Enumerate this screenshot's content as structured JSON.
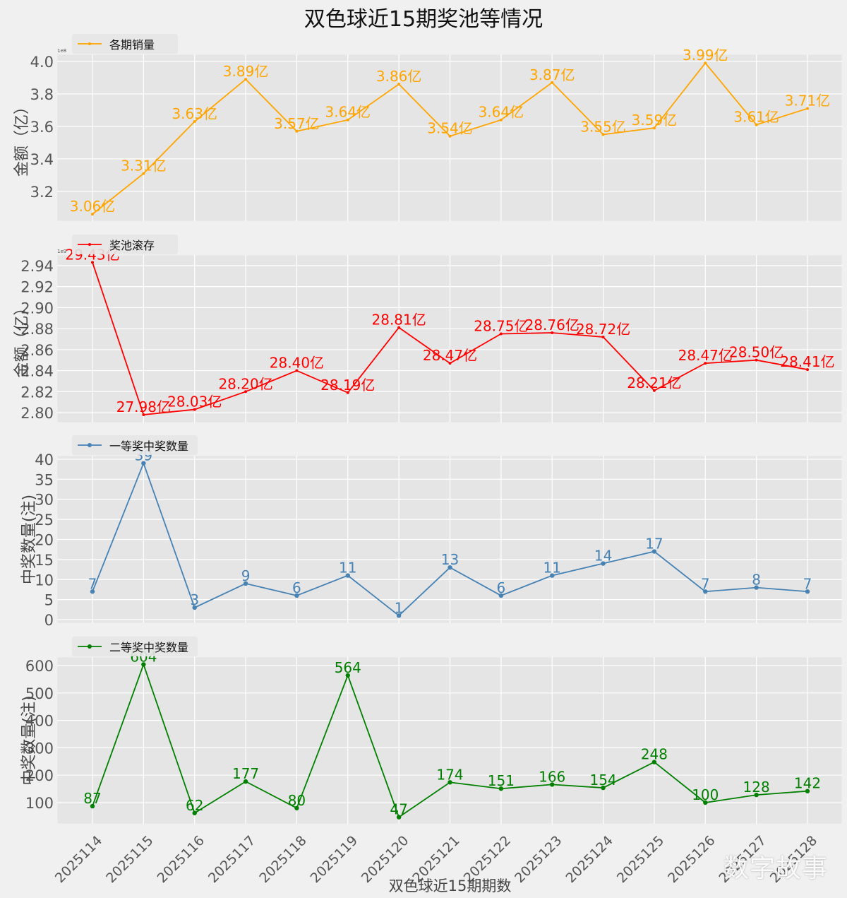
{
  "figure": {
    "title": "双色球近15期奖池等情况",
    "xlabel": "双色球近15期期数",
    "watermark": "数字故事"
  },
  "chart_data": {
    "type": "line",
    "categories": [
      "2025114",
      "2025115",
      "2025116",
      "2025117",
      "2025118",
      "2025119",
      "2025120",
      "2025121",
      "2025122",
      "2025123",
      "2025124",
      "2025125",
      "2025126",
      "2025127",
      "2025128"
    ],
    "xlabel": "双色球近15期期数",
    "subplots": [
      {
        "name": "sales",
        "legend": "各期销量",
        "legend_position": "top-left",
        "color": "#ffa500",
        "marker": "star",
        "ylabel": "金额（亿）",
        "offset_text": "1e8",
        "ylim": [
          3.017,
          4.043
        ],
        "yticks": [
          3.2,
          3.4,
          3.6,
          3.8,
          4.0
        ],
        "ytick_labels": [
          "3.2",
          "3.4",
          "3.6",
          "3.8",
          "4.0"
        ],
        "values": [
          3.06,
          3.31,
          3.63,
          3.89,
          3.57,
          3.64,
          3.86,
          3.54,
          3.64,
          3.87,
          3.55,
          3.59,
          3.99,
          3.61,
          3.71
        ],
        "data_labels": [
          "3.06亿",
          "3.31亿",
          "3.63亿",
          "3.89亿",
          "3.57亿",
          "3.64亿",
          "3.86亿",
          "3.54亿",
          "3.64亿",
          "3.87亿",
          "3.55亿",
          "3.59亿",
          "3.99亿",
          "3.61亿",
          "3.71亿"
        ],
        "grid": true
      },
      {
        "name": "pool",
        "legend": "奖池滚存",
        "legend_position": "top-left",
        "color": "#ff0000",
        "marker": "star",
        "ylabel": "金额（亿）",
        "offset_text": "1e9",
        "ylim": [
          2.7906,
          2.95
        ],
        "yticks": [
          2.8,
          2.82,
          2.84,
          2.86,
          2.88,
          2.9,
          2.92,
          2.94
        ],
        "ytick_labels": [
          "2.80",
          "2.82",
          "2.84",
          "2.86",
          "2.88",
          "2.90",
          "2.92",
          "2.94"
        ],
        "values": [
          2.943,
          2.798,
          2.803,
          2.82,
          2.84,
          2.819,
          2.881,
          2.847,
          2.875,
          2.876,
          2.872,
          2.821,
          2.847,
          2.85,
          2.841
        ],
        "data_labels": [
          "29.43亿",
          "27.98亿",
          "28.03亿",
          "28.20亿",
          "28.40亿",
          "28.19亿",
          "28.81亿",
          "28.47亿",
          "28.75亿",
          "28.76亿",
          "28.72亿",
          "28.21亿",
          "28.47亿",
          "28.50亿",
          "28.41亿"
        ],
        "grid": true
      },
      {
        "name": "first_prize",
        "legend": "一等奖中奖数量",
        "legend_position": "top-left",
        "color": "#4682b4",
        "marker": "circle",
        "ylabel": "中奖数量(注)",
        "offset_text": "",
        "ylim": [
          -0.88,
          40.88
        ],
        "yticks": [
          0,
          5,
          10,
          15,
          20,
          25,
          30,
          35,
          40
        ],
        "ytick_labels": [
          "0",
          "5",
          "10",
          "15",
          "20",
          "25",
          "30",
          "35",
          "40"
        ],
        "values": [
          7,
          39,
          3,
          9,
          6,
          11,
          1,
          13,
          6,
          11,
          14,
          17,
          7,
          8,
          7
        ],
        "data_labels": [
          "7",
          "39",
          "3",
          "9",
          "6",
          "11",
          "1",
          "13",
          "6",
          "11",
          "14",
          "17",
          "7",
          "8",
          "7"
        ],
        "grid": true
      },
      {
        "name": "second_prize",
        "legend": "二等奖中奖数量",
        "legend_position": "top-left",
        "color": "#008000",
        "marker": "circle",
        "ylabel": "中奖数量(注)",
        "offset_text": "",
        "ylim": [
          22.7,
          630.9
        ],
        "yticks": [
          100,
          200,
          300,
          400,
          500,
          600
        ],
        "ytick_labels": [
          "100",
          "200",
          "300",
          "400",
          "500",
          "600"
        ],
        "values": [
          87,
          604,
          62,
          177,
          80,
          564,
          47,
          174,
          151,
          166,
          154,
          248,
          100,
          128,
          142
        ],
        "data_labels": [
          "87",
          "604",
          "62",
          "177",
          "80",
          "564",
          "47",
          "174",
          "151",
          "166",
          "154",
          "248",
          "100",
          "128",
          "142"
        ],
        "grid": true
      }
    ]
  }
}
